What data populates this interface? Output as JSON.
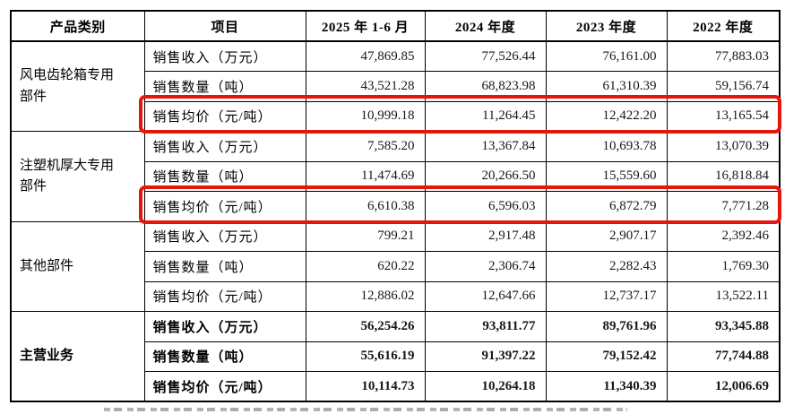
{
  "table": {
    "headers": {
      "category": "产品类别",
      "item": "项目",
      "p2025": "2025 年 1-6 月",
      "p2024": "2024 年度",
      "p2023": "2023 年度",
      "p2022": "2022 年度"
    },
    "sections": [
      {
        "category": "风电齿轮箱专用部件",
        "rows": [
          {
            "item": "销售收入（万元）",
            "values": [
              "47,869.85",
              "77,526.44",
              "76,161.00",
              "77,883.03"
            ],
            "highlighted": false
          },
          {
            "item": "销售数量（吨）",
            "values": [
              "43,521.28",
              "68,823.98",
              "61,310.39",
              "59,156.74"
            ],
            "highlighted": false
          },
          {
            "item": "销售均价（元/吨）",
            "values": [
              "10,999.18",
              "11,264.45",
              "12,422.20",
              "13,165.54"
            ],
            "highlighted": true
          }
        ]
      },
      {
        "category": "注塑机厚大专用部件",
        "rows": [
          {
            "item": "销售收入（万元）",
            "values": [
              "7,585.20",
              "13,367.84",
              "10,693.78",
              "13,070.39"
            ],
            "highlighted": false
          },
          {
            "item": "销售数量（吨）",
            "values": [
              "11,474.69",
              "20,266.50",
              "15,559.60",
              "16,818.84"
            ],
            "highlighted": false
          },
          {
            "item": "销售均价（元/吨）",
            "values": [
              "6,610.38",
              "6,596.03",
              "6,872.79",
              "7,771.28"
            ],
            "highlighted": true
          }
        ]
      },
      {
        "category": "其他部件",
        "rows": [
          {
            "item": "销售收入（万元）",
            "values": [
              "799.21",
              "2,917.48",
              "2,907.17",
              "2,392.46"
            ],
            "highlighted": false
          },
          {
            "item": "销售数量（吨）",
            "values": [
              "620.22",
              "2,306.74",
              "2,282.43",
              "1,769.30"
            ],
            "highlighted": false
          },
          {
            "item": "销售均价（元/吨）",
            "values": [
              "12,886.02",
              "12,647.66",
              "12,737.17",
              "13,522.11"
            ],
            "highlighted": false
          }
        ]
      },
      {
        "category": "主营业务",
        "rows": [
          {
            "item": "销售收入（万元）",
            "values": [
              "56,254.26",
              "93,811.77",
              "89,761.96",
              "93,345.88"
            ],
            "highlighted": false
          },
          {
            "item": "销售数量（吨）",
            "values": [
              "55,616.19",
              "91,397.22",
              "79,152.42",
              "77,744.88"
            ],
            "highlighted": false
          },
          {
            "item": "销售均价（元/吨）",
            "values": [
              "10,114.73",
              "10,264.18",
              "11,340.39",
              "12,006.69"
            ],
            "highlighted": false
          }
        ]
      }
    ]
  },
  "annotations": {
    "highlight_color": "#e8140c",
    "highlighted_rows": "销售均价（元/吨）rows of 风电齿轮箱专用部件 and 注塑机厚大专用部件"
  }
}
